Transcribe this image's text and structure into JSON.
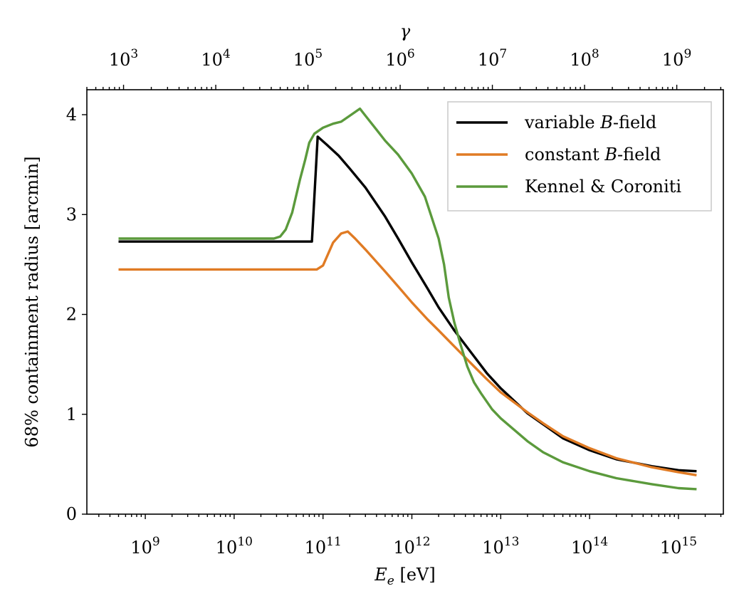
{
  "chart_data": {
    "type": "line",
    "xlabel": {
      "base": "E",
      "sub": "e",
      "unit": " [eV]"
    },
    "x2label": "γ",
    "ylabel": "68% containment radius [arcmin]",
    "xscale": "log",
    "x2scale": "log",
    "xlim": [
      220000000.0,
      3200000000000000.0
    ],
    "x2lim": [
      400,
      3200000000.0
    ],
    "ylim": [
      0,
      4.25
    ],
    "x_ticks": [
      {
        "mant": "10",
        "exp": "9",
        "value": 1000000000.0
      },
      {
        "mant": "10",
        "exp": "10",
        "value": 10000000000.0
      },
      {
        "mant": "10",
        "exp": "11",
        "value": 100000000000.0
      },
      {
        "mant": "10",
        "exp": "12",
        "value": 1000000000000.0
      },
      {
        "mant": "10",
        "exp": "13",
        "value": 10000000000000.0
      },
      {
        "mant": "10",
        "exp": "14",
        "value": 100000000000000.0
      },
      {
        "mant": "10",
        "exp": "15",
        "value": 1000000000000000.0
      }
    ],
    "x2_ticks": [
      {
        "mant": "10",
        "exp": "3",
        "value": 1000.0
      },
      {
        "mant": "10",
        "exp": "4",
        "value": 10000.0
      },
      {
        "mant": "10",
        "exp": "5",
        "value": 100000.0
      },
      {
        "mant": "10",
        "exp": "6",
        "value": 1000000.0
      },
      {
        "mant": "10",
        "exp": "7",
        "value": 10000000.0
      },
      {
        "mant": "10",
        "exp": "8",
        "value": 100000000.0
      },
      {
        "mant": "10",
        "exp": "9",
        "value": 1000000000.0
      }
    ],
    "y_ticks": [
      {
        "label": "0",
        "value": 0
      },
      {
        "label": "1",
        "value": 1
      },
      {
        "label": "2",
        "value": 2
      },
      {
        "label": "3",
        "value": 3
      },
      {
        "label": "4",
        "value": 4
      }
    ],
    "legend": {
      "position": "top-right"
    },
    "grid": false,
    "series": [
      {
        "name": "variable B-field",
        "name_parts": [
          "variable ",
          "B",
          "-field"
        ],
        "color": "#000000",
        "points": [
          [
            500000000.0,
            2.73
          ],
          [
            1000000000.0,
            2.73
          ],
          [
            3000000000.0,
            2.73
          ],
          [
            10000000000.0,
            2.73
          ],
          [
            30000000000.0,
            2.73
          ],
          [
            50000000000.0,
            2.73
          ],
          [
            75000000000.0,
            2.73
          ],
          [
            87000000000.0,
            3.78
          ],
          [
            110000000000.0,
            3.7
          ],
          [
            150000000000.0,
            3.59
          ],
          [
            200000000000.0,
            3.46
          ],
          [
            300000000000.0,
            3.27
          ],
          [
            500000000000.0,
            2.98
          ],
          [
            700000000000.0,
            2.76
          ],
          [
            1000000000000.0,
            2.52
          ],
          [
            1500000000000.0,
            2.26
          ],
          [
            2000000000000.0,
            2.07
          ],
          [
            3000000000000.0,
            1.84
          ],
          [
            5000000000000.0,
            1.58
          ],
          [
            7000000000000.0,
            1.41
          ],
          [
            10000000000000.0,
            1.26
          ],
          [
            20000000000000.0,
            1.01
          ],
          [
            30000000000000.0,
            0.9
          ],
          [
            50000000000000.0,
            0.76
          ],
          [
            100000000000000.0,
            0.64
          ],
          [
            200000000000000.0,
            0.55
          ],
          [
            500000000000000.0,
            0.48
          ],
          [
            1000000000000000.0,
            0.44
          ],
          [
            1600000000000000.0,
            0.43
          ]
        ]
      },
      {
        "name": "constant B-field",
        "name_parts": [
          "constant ",
          "B",
          "-field"
        ],
        "color": "#e07b24",
        "points": [
          [
            500000000.0,
            2.45
          ],
          [
            1000000000.0,
            2.45
          ],
          [
            3000000000.0,
            2.45
          ],
          [
            10000000000.0,
            2.45
          ],
          [
            30000000000.0,
            2.45
          ],
          [
            60000000000.0,
            2.45
          ],
          [
            85000000000.0,
            2.45
          ],
          [
            100000000000.0,
            2.49
          ],
          [
            130000000000.0,
            2.72
          ],
          [
            160000000000.0,
            2.81
          ],
          [
            190000000000.0,
            2.83
          ],
          [
            230000000000.0,
            2.76
          ],
          [
            300000000000.0,
            2.65
          ],
          [
            500000000000.0,
            2.43
          ],
          [
            700000000000.0,
            2.28
          ],
          [
            1000000000000.0,
            2.12
          ],
          [
            1500000000000.0,
            1.95
          ],
          [
            2000000000000.0,
            1.84
          ],
          [
            3000000000000.0,
            1.68
          ],
          [
            5000000000000.0,
            1.48
          ],
          [
            7000000000000.0,
            1.35
          ],
          [
            10000000000000.0,
            1.22
          ],
          [
            20000000000000.0,
            1.02
          ],
          [
            30000000000000.0,
            0.91
          ],
          [
            50000000000000.0,
            0.78
          ],
          [
            100000000000000.0,
            0.66
          ],
          [
            200000000000000.0,
            0.56
          ],
          [
            500000000000000.0,
            0.47
          ],
          [
            1000000000000000.0,
            0.42
          ],
          [
            1600000000000000.0,
            0.39
          ]
        ]
      },
      {
        "name": "Kennel & Coroniti",
        "name_parts": [
          "Kennel & Coroniti",
          "",
          ""
        ],
        "color": "#5b9a3c",
        "points": [
          [
            500000000.0,
            2.76
          ],
          [
            1000000000.0,
            2.76
          ],
          [
            3000000000.0,
            2.76
          ],
          [
            10000000000.0,
            2.76
          ],
          [
            28000000000.0,
            2.76
          ],
          [
            33000000000.0,
            2.78
          ],
          [
            38000000000.0,
            2.85
          ],
          [
            45000000000.0,
            3.02
          ],
          [
            55000000000.0,
            3.35
          ],
          [
            63000000000.0,
            3.55
          ],
          [
            70000000000.0,
            3.72
          ],
          [
            80000000000.0,
            3.81
          ],
          [
            100000000000.0,
            3.87
          ],
          [
            130000000000.0,
            3.91
          ],
          [
            160000000000.0,
            3.93
          ],
          [
            200000000000.0,
            3.99
          ],
          [
            260000000000.0,
            4.06
          ],
          [
            300000000000.0,
            3.99
          ],
          [
            400000000000.0,
            3.85
          ],
          [
            500000000000.0,
            3.74
          ],
          [
            700000000000.0,
            3.6
          ],
          [
            1000000000000.0,
            3.41
          ],
          [
            1400000000000.0,
            3.18
          ],
          [
            2000000000000.0,
            2.76
          ],
          [
            2300000000000.0,
            2.5
          ],
          [
            2600000000000.0,
            2.17
          ],
          [
            3000000000000.0,
            1.92
          ],
          [
            3500000000000.0,
            1.71
          ],
          [
            4200000000000.0,
            1.48
          ],
          [
            5000000000000.0,
            1.32
          ],
          [
            6000000000000.0,
            1.21
          ],
          [
            8000000000000.0,
            1.05
          ],
          [
            10000000000000.0,
            0.96
          ],
          [
            20000000000000.0,
            0.73
          ],
          [
            30000000000000.0,
            0.62
          ],
          [
            50000000000000.0,
            0.52
          ],
          [
            100000000000000.0,
            0.43
          ],
          [
            200000000000000.0,
            0.36
          ],
          [
            500000000000000.0,
            0.3
          ],
          [
            1000000000000000.0,
            0.26
          ],
          [
            1600000000000000.0,
            0.25
          ]
        ]
      }
    ]
  }
}
